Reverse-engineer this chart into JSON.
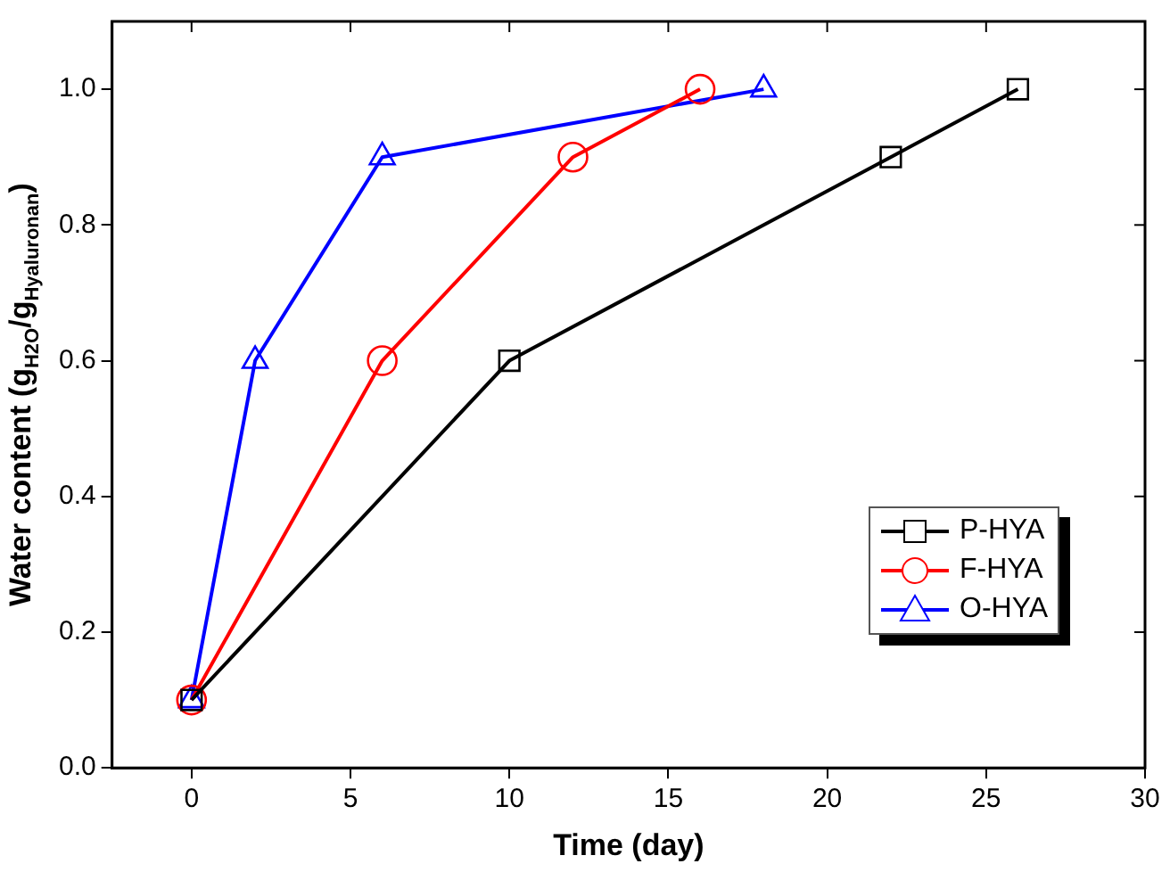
{
  "chart_data": {
    "type": "line",
    "xlabel": "Time (day)",
    "ylabel": "Water content (g$_{H2O}$/g$_{Hyaluronan}$)",
    "series": [
      {
        "name": "P-HYA",
        "color": "#000000",
        "marker": "square",
        "x": [
          0,
          10,
          22,
          26
        ],
        "values": [
          0.1,
          0.6,
          0.9,
          1.0
        ]
      },
      {
        "name": "F-HYA",
        "color": "#ff0000",
        "marker": "circle",
        "x": [
          0,
          6,
          12,
          16
        ],
        "values": [
          0.1,
          0.6,
          0.9,
          1.0
        ]
      },
      {
        "name": "O-HYA",
        "color": "#0000ff",
        "marker": "triangle",
        "x": [
          0,
          2,
          6,
          18
        ],
        "values": [
          0.1,
          0.6,
          0.9,
          1.0
        ]
      }
    ],
    "xlim": [
      -2.5,
      30
    ],
    "xticks": [
      0,
      5,
      10,
      15,
      20,
      25,
      30
    ],
    "ylim": [
      0,
      1.1
    ],
    "yticks": [
      {
        "value": 0,
        "label": "0.0"
      },
      {
        "value": 0.2,
        "label": "0.2"
      },
      {
        "value": 0.4,
        "label": "0.4"
      },
      {
        "value": 0.6,
        "label": "0.6"
      },
      {
        "value": 0.8,
        "label": "0.8"
      },
      {
        "value": 1.0,
        "label": "1.0"
      }
    ],
    "grid": false,
    "legend": "bottom right",
    "line_style": "solid"
  }
}
